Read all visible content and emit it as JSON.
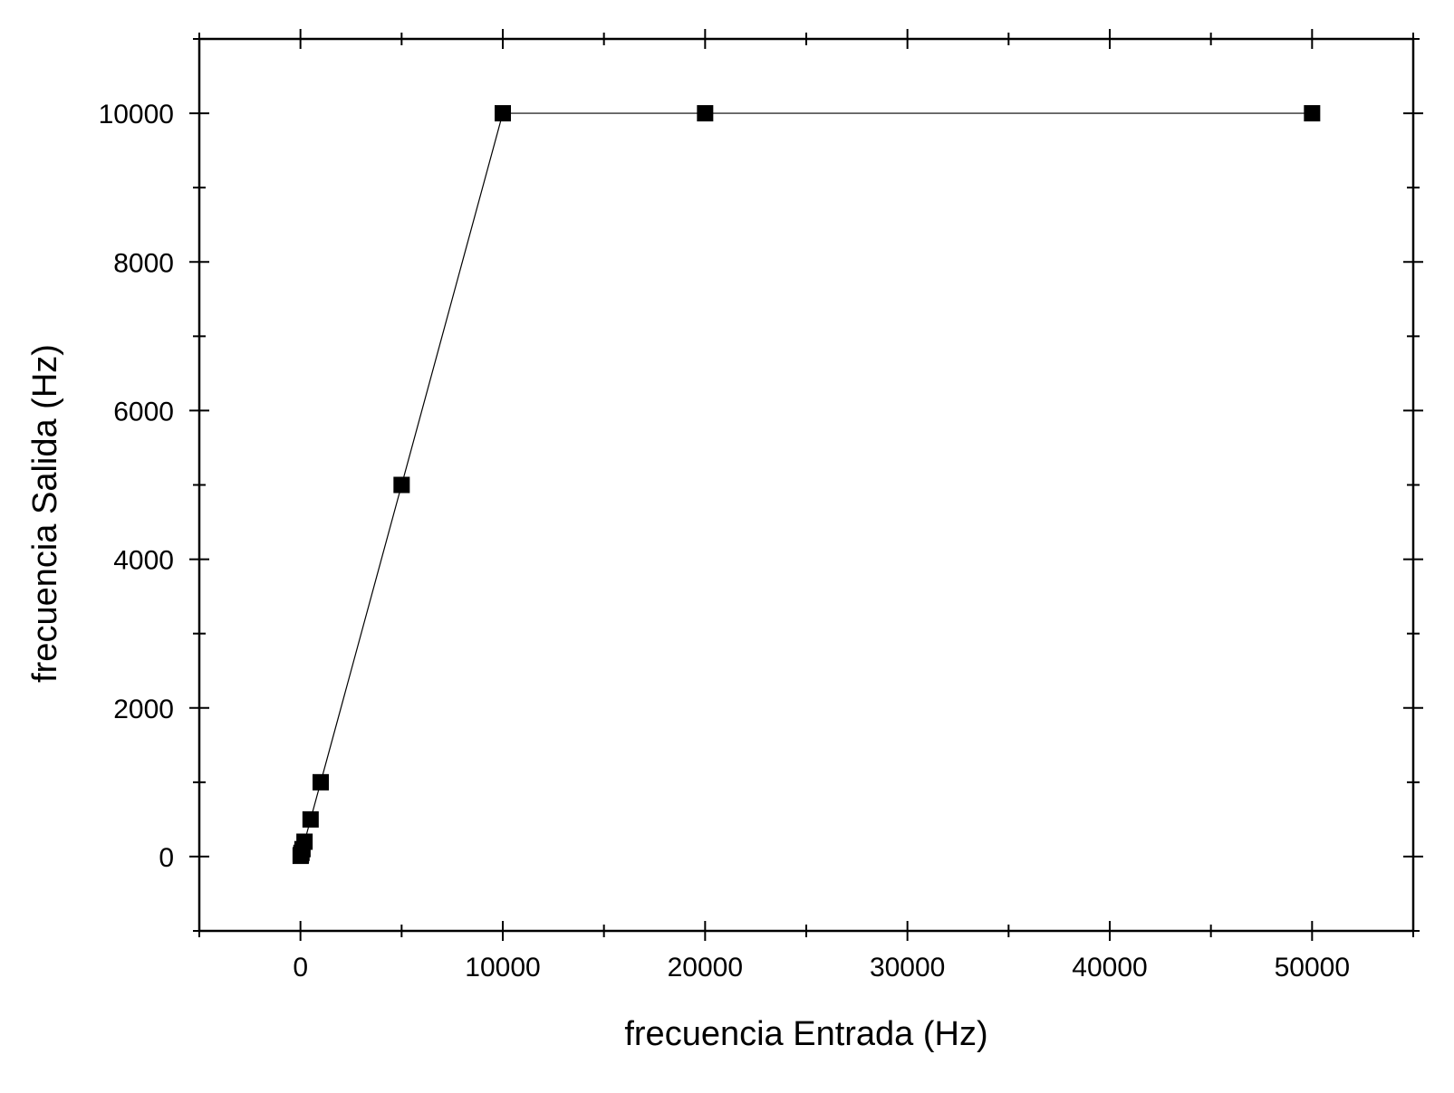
{
  "chart_data": {
    "type": "line",
    "title": "",
    "xlabel": "frecuencia Entrada (Hz)",
    "ylabel": "frecuencia Salida (Hz)",
    "xlim": [
      -5000,
      55000
    ],
    "ylim": [
      -1000,
      11000
    ],
    "x_major_ticks": [
      0,
      10000,
      20000,
      30000,
      40000,
      50000
    ],
    "x_tick_labels": [
      "0",
      "10000",
      "20000",
      "30000",
      "40000",
      "50000"
    ],
    "x_minor_ticks": [
      -5000,
      5000,
      15000,
      25000,
      35000,
      45000,
      55000
    ],
    "y_major_ticks": [
      0,
      2000,
      4000,
      6000,
      8000,
      10000
    ],
    "y_tick_labels": [
      "0",
      "2000",
      "4000",
      "6000",
      "8000",
      "10000"
    ],
    "y_minor_ticks": [
      -1000,
      1000,
      3000,
      5000,
      7000,
      9000,
      11000
    ],
    "grid": false,
    "legend": "none",
    "series": [
      {
        "marker": "square",
        "color": "#000000",
        "points": [
          {
            "x": 10,
            "y": 10
          },
          {
            "x": 20,
            "y": 20
          },
          {
            "x": 50,
            "y": 50
          },
          {
            "x": 100,
            "y": 100
          },
          {
            "x": 200,
            "y": 200
          },
          {
            "x": 500,
            "y": 500
          },
          {
            "x": 1000,
            "y": 1000
          },
          {
            "x": 5000,
            "y": 5000
          },
          {
            "x": 10000,
            "y": 10000
          },
          {
            "x": 20000,
            "y": 10000
          },
          {
            "x": 50000,
            "y": 10000
          }
        ]
      }
    ]
  }
}
